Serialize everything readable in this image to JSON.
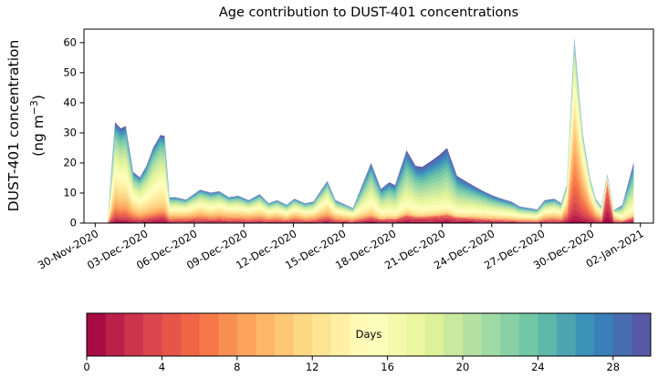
{
  "chart_data": {
    "type": "stacked_area",
    "title": "Age contribution to DUST-401 concentrations",
    "ylabel_line1": "DUST-401 concentration",
    "ylabel_unit_prefix": "(ng m",
    "ylabel_unit_exp": "−3",
    "ylabel_unit_suffix": ")",
    "background_color": "#ffffff",
    "axis_color": "#000000",
    "grid": false,
    "ylim": [
      0,
      64.5
    ],
    "y_ticks": [
      0,
      10,
      20,
      30,
      40,
      50,
      60
    ],
    "x_start_date": "30-Nov-2020",
    "xlim_days": [
      -0.68,
      33.79
    ],
    "x_tick_days": [
      0,
      3,
      6,
      9,
      12,
      15,
      18,
      21,
      24,
      27,
      30,
      33
    ],
    "x_tick_labels": [
      "30-Nov-2020",
      "03-Dec-2020",
      "06-Dec-2020",
      "09-Dec-2020",
      "12-Dec-2020",
      "15-Dec-2020",
      "18-Dec-2020",
      "21-Dec-2020",
      "24-Dec-2020",
      "27-Dec-2020",
      "30-Dec-2020",
      "02-Jan-2021"
    ],
    "n_age_layers": 30,
    "age_range_days": [
      0,
      30
    ],
    "colormap": {
      "name": "Spectral",
      "anchors": [
        "#9e0142",
        "#d53e4f",
        "#f46d43",
        "#fdae61",
        "#fee08b",
        "#ffffbf",
        "#e6f598",
        "#abdda4",
        "#66c2a5",
        "#3288bd",
        "#5e4fa2"
      ]
    },
    "colorbar": {
      "label": "Days",
      "ticks": [
        0,
        4,
        8,
        12,
        16,
        20,
        24,
        28
      ],
      "vmin": 0,
      "vmax": 30
    },
    "series_model": {
      "description": "Each point: [days_since_30Nov2020, total_concentration_ng_m3, dominant_age_days, age_spread_days, fresh_mode_amplitude]. Per-age weights = amp_fresh*N(1.5,2.2) + N(peak, spread asym 0.85/1.55) + 0.04, normalized to total, over 30 one-day age layers.",
      "fresh_mode_age": 1.5,
      "fresh_mode_spread": 2.2,
      "floor": 0.04,
      "spread_factor_low": 0.85,
      "spread_factor_high": 1.55
    },
    "points": [
      [
        0.75,
        0.5,
        13,
        6,
        0.25
      ],
      [
        1.2,
        33.5,
        13,
        6,
        0.25
      ],
      [
        1.55,
        31.5,
        13.5,
        6,
        0.25
      ],
      [
        1.85,
        32.3,
        13.5,
        6,
        0.25
      ],
      [
        2.3,
        17.0,
        13,
        6,
        0.3
      ],
      [
        2.7,
        15.2,
        13.5,
        5.5,
        0.3
      ],
      [
        3.1,
        19.0,
        14,
        5.5,
        0.3
      ],
      [
        3.5,
        25.0,
        14.5,
        5,
        0.3
      ],
      [
        3.95,
        29.3,
        14.5,
        5,
        0.3
      ],
      [
        4.2,
        29.0,
        14.5,
        5,
        0.3
      ],
      [
        4.5,
        8.5,
        12.5,
        6,
        0.4
      ],
      [
        4.85,
        8.6,
        12.5,
        6,
        0.45
      ],
      [
        5.5,
        7.8,
        12,
        6,
        0.5
      ],
      [
        6.35,
        11.1,
        12.5,
        6,
        0.45
      ],
      [
        7.0,
        10.1,
        13,
        6,
        0.4
      ],
      [
        7.5,
        10.6,
        12.5,
        6,
        0.4
      ],
      [
        8.1,
        8.6,
        12,
        6,
        0.4
      ],
      [
        8.65,
        9.1,
        12.5,
        6,
        0.4
      ],
      [
        9.3,
        7.6,
        12,
        6,
        0.4
      ],
      [
        9.95,
        9.6,
        12.5,
        6,
        0.4
      ],
      [
        10.5,
        6.6,
        12,
        6,
        0.4
      ],
      [
        11.0,
        7.6,
        12,
        6,
        0.4
      ],
      [
        11.6,
        6.1,
        12.5,
        6,
        0.4
      ],
      [
        12.05,
        8.1,
        12,
        6,
        0.45
      ],
      [
        12.7,
        6.6,
        12.5,
        6,
        0.4
      ],
      [
        13.2,
        7.1,
        12.5,
        6,
        0.4
      ],
      [
        14.05,
        14.0,
        13,
        5.5,
        0.45
      ],
      [
        14.55,
        7.6,
        12.5,
        6,
        0.4
      ],
      [
        15.6,
        5.0,
        12,
        6,
        0.4
      ],
      [
        16.7,
        20.0,
        16.5,
        5.5,
        0.35
      ],
      [
        17.3,
        11.3,
        17,
        5.5,
        0.35
      ],
      [
        17.8,
        13.6,
        17.5,
        5.5,
        0.35
      ],
      [
        18.15,
        12.6,
        18,
        5.5,
        0.35
      ],
      [
        18.85,
        24.2,
        18.5,
        5.5,
        0.35
      ],
      [
        19.4,
        19.0,
        18.5,
        5.5,
        0.35
      ],
      [
        19.8,
        18.7,
        19,
        5.5,
        0.35
      ],
      [
        20.3,
        20.5,
        19,
        5.5,
        0.35
      ],
      [
        20.8,
        22.5,
        19.5,
        5.5,
        0.35
      ],
      [
        21.3,
        25.0,
        19.5,
        5.5,
        0.35
      ],
      [
        21.9,
        15.7,
        19,
        5.5,
        0.4
      ],
      [
        22.4,
        14.0,
        18.5,
        5.5,
        0.45
      ],
      [
        23.0,
        12.1,
        17.5,
        6,
        0.45
      ],
      [
        23.5,
        10.6,
        17,
        6,
        0.45
      ],
      [
        24.1,
        9.1,
        16.5,
        6.5,
        0.45
      ],
      [
        24.6,
        8.1,
        16,
        6.5,
        0.45
      ],
      [
        25.2,
        7.1,
        15.5,
        6.5,
        0.45
      ],
      [
        25.7,
        5.5,
        15,
        6.5,
        0.45
      ],
      [
        26.3,
        5.0,
        14.5,
        6.5,
        0.45
      ],
      [
        26.75,
        4.5,
        14,
        6.5,
        0.45
      ],
      [
        27.2,
        7.6,
        13.5,
        6.5,
        0.45
      ],
      [
        27.8,
        8.1,
        13,
        6.5,
        0.45
      ],
      [
        28.2,
        6.6,
        12.5,
        6,
        0.5
      ],
      [
        28.55,
        12.6,
        10,
        5,
        0.5
      ],
      [
        29.0,
        61.6,
        8,
        5,
        0.15
      ],
      [
        29.5,
        30.0,
        8.5,
        4.5,
        0.3
      ],
      [
        29.95,
        15.0,
        9,
        5,
        0.4
      ],
      [
        30.3,
        8.0,
        10,
        5,
        0.45
      ],
      [
        30.65,
        5.5,
        11,
        5,
        0.45
      ],
      [
        31.0,
        16.2,
        1,
        2.2,
        0
      ],
      [
        31.4,
        4.3,
        10,
        5,
        0.45
      ],
      [
        31.9,
        6.0,
        16,
        5,
        0.35
      ],
      [
        32.6,
        20.2,
        18.5,
        5,
        0.3
      ]
    ]
  }
}
